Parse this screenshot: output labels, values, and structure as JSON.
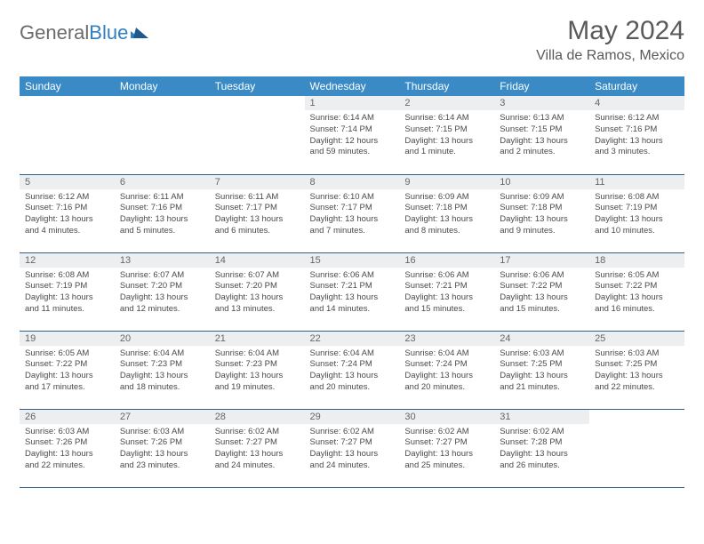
{
  "logo": {
    "text1": "General",
    "text2": "Blue"
  },
  "title": "May 2024",
  "location": "Villa de Ramos, Mexico",
  "columns": [
    "Sunday",
    "Monday",
    "Tuesday",
    "Wednesday",
    "Thursday",
    "Friday",
    "Saturday"
  ],
  "colors": {
    "header_bg": "#3a8ac6",
    "header_text": "#ffffff",
    "daynum_bg": "#eceef0",
    "border": "#2f5f8a",
    "text": "#4a4a4a",
    "title": "#5a5a5a"
  },
  "layout": {
    "first_weekday_index": 3,
    "weeks": 5
  },
  "days": [
    {
      "n": "1",
      "sunrise": "6:14 AM",
      "sunset": "7:14 PM",
      "daylight": "12 hours and 59 minutes."
    },
    {
      "n": "2",
      "sunrise": "6:14 AM",
      "sunset": "7:15 PM",
      "daylight": "13 hours and 1 minute."
    },
    {
      "n": "3",
      "sunrise": "6:13 AM",
      "sunset": "7:15 PM",
      "daylight": "13 hours and 2 minutes."
    },
    {
      "n": "4",
      "sunrise": "6:12 AM",
      "sunset": "7:16 PM",
      "daylight": "13 hours and 3 minutes."
    },
    {
      "n": "5",
      "sunrise": "6:12 AM",
      "sunset": "7:16 PM",
      "daylight": "13 hours and 4 minutes."
    },
    {
      "n": "6",
      "sunrise": "6:11 AM",
      "sunset": "7:16 PM",
      "daylight": "13 hours and 5 minutes."
    },
    {
      "n": "7",
      "sunrise": "6:11 AM",
      "sunset": "7:17 PM",
      "daylight": "13 hours and 6 minutes."
    },
    {
      "n": "8",
      "sunrise": "6:10 AM",
      "sunset": "7:17 PM",
      "daylight": "13 hours and 7 minutes."
    },
    {
      "n": "9",
      "sunrise": "6:09 AM",
      "sunset": "7:18 PM",
      "daylight": "13 hours and 8 minutes."
    },
    {
      "n": "10",
      "sunrise": "6:09 AM",
      "sunset": "7:18 PM",
      "daylight": "13 hours and 9 minutes."
    },
    {
      "n": "11",
      "sunrise": "6:08 AM",
      "sunset": "7:19 PM",
      "daylight": "13 hours and 10 minutes."
    },
    {
      "n": "12",
      "sunrise": "6:08 AM",
      "sunset": "7:19 PM",
      "daylight": "13 hours and 11 minutes."
    },
    {
      "n": "13",
      "sunrise": "6:07 AM",
      "sunset": "7:20 PM",
      "daylight": "13 hours and 12 minutes."
    },
    {
      "n": "14",
      "sunrise": "6:07 AM",
      "sunset": "7:20 PM",
      "daylight": "13 hours and 13 minutes."
    },
    {
      "n": "15",
      "sunrise": "6:06 AM",
      "sunset": "7:21 PM",
      "daylight": "13 hours and 14 minutes."
    },
    {
      "n": "16",
      "sunrise": "6:06 AM",
      "sunset": "7:21 PM",
      "daylight": "13 hours and 15 minutes."
    },
    {
      "n": "17",
      "sunrise": "6:06 AM",
      "sunset": "7:22 PM",
      "daylight": "13 hours and 15 minutes."
    },
    {
      "n": "18",
      "sunrise": "6:05 AM",
      "sunset": "7:22 PM",
      "daylight": "13 hours and 16 minutes."
    },
    {
      "n": "19",
      "sunrise": "6:05 AM",
      "sunset": "7:22 PM",
      "daylight": "13 hours and 17 minutes."
    },
    {
      "n": "20",
      "sunrise": "6:04 AM",
      "sunset": "7:23 PM",
      "daylight": "13 hours and 18 minutes."
    },
    {
      "n": "21",
      "sunrise": "6:04 AM",
      "sunset": "7:23 PM",
      "daylight": "13 hours and 19 minutes."
    },
    {
      "n": "22",
      "sunrise": "6:04 AM",
      "sunset": "7:24 PM",
      "daylight": "13 hours and 20 minutes."
    },
    {
      "n": "23",
      "sunrise": "6:04 AM",
      "sunset": "7:24 PM",
      "daylight": "13 hours and 20 minutes."
    },
    {
      "n": "24",
      "sunrise": "6:03 AM",
      "sunset": "7:25 PM",
      "daylight": "13 hours and 21 minutes."
    },
    {
      "n": "25",
      "sunrise": "6:03 AM",
      "sunset": "7:25 PM",
      "daylight": "13 hours and 22 minutes."
    },
    {
      "n": "26",
      "sunrise": "6:03 AM",
      "sunset": "7:26 PM",
      "daylight": "13 hours and 22 minutes."
    },
    {
      "n": "27",
      "sunrise": "6:03 AM",
      "sunset": "7:26 PM",
      "daylight": "13 hours and 23 minutes."
    },
    {
      "n": "28",
      "sunrise": "6:02 AM",
      "sunset": "7:27 PM",
      "daylight": "13 hours and 24 minutes."
    },
    {
      "n": "29",
      "sunrise": "6:02 AM",
      "sunset": "7:27 PM",
      "daylight": "13 hours and 24 minutes."
    },
    {
      "n": "30",
      "sunrise": "6:02 AM",
      "sunset": "7:27 PM",
      "daylight": "13 hours and 25 minutes."
    },
    {
      "n": "31",
      "sunrise": "6:02 AM",
      "sunset": "7:28 PM",
      "daylight": "13 hours and 26 minutes."
    }
  ],
  "labels": {
    "sunrise": "Sunrise: ",
    "sunset": "Sunset: ",
    "daylight": "Daylight: "
  }
}
